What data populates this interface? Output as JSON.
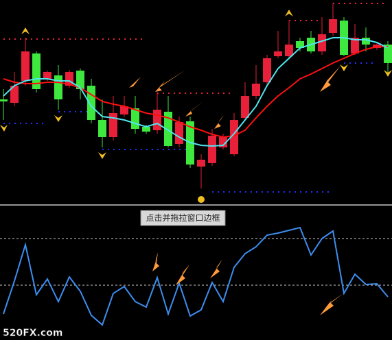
{
  "chart_data": [
    {
      "type": "candlestick",
      "ylim": [
        0,
        298
      ],
      "up_color": "#e8203a",
      "down_color": "#3ee83e",
      "open": [
        153,
        148,
        180,
        220,
        183,
        188,
        173,
        195,
        173,
        123,
        98,
        131,
        140,
        113,
        108,
        135,
        88,
        121,
        55,
        60,
        83,
        73,
        126,
        158,
        178,
        216,
        216,
        238,
        243,
        223,
        250,
        268,
        220,
        243,
        228,
        233
      ],
      "high": [
        168,
        193,
        243,
        223,
        195,
        203,
        196,
        198,
        183,
        153,
        158,
        158,
        158,
        116,
        163,
        158,
        128,
        128,
        73,
        110,
        103,
        133,
        178,
        203,
        218,
        253,
        268,
        243,
        253,
        273,
        293,
        273,
        263,
        258,
        236,
        238
      ],
      "low": [
        123,
        143,
        173,
        163,
        180,
        138,
        170,
        153,
        118,
        83,
        93,
        128,
        103,
        103,
        103,
        83,
        83,
        53,
        23,
        56,
        80,
        70,
        123,
        153,
        173,
        213,
        213,
        223,
        220,
        218,
        246,
        216,
        218,
        223,
        225,
        188
      ],
      "close": [
        150,
        173,
        223,
        168,
        193,
        153,
        193,
        168,
        123,
        98,
        133,
        143,
        110,
        106,
        138,
        85,
        120,
        58,
        65,
        100,
        98,
        123,
        158,
        176,
        213,
        223,
        233,
        228,
        223,
        248,
        270,
        218,
        243,
        233,
        233,
        206
      ],
      "series": [
        {
          "color": "#ff1010",
          "values": [
            183,
            178,
            176,
            176,
            178,
            178,
            175,
            170,
            160,
            150,
            146,
            143,
            138,
            133,
            130,
            126,
            120,
            113,
            108,
            102,
            98,
            100,
            108,
            126,
            143,
            158,
            170,
            183,
            190,
            198,
            206,
            213,
            220,
            226,
            230,
            230
          ]
        },
        {
          "color": "#4fe6f0",
          "values": [
            158,
            173,
            180,
            183,
            183,
            180,
            180,
            170,
            143,
            128,
            126,
            123,
            118,
            113,
            118,
            108,
            98,
            90,
            86,
            85,
            86,
            103,
            123,
            143,
            173,
            198,
            213,
            228,
            233,
            238,
            243,
            243,
            240,
            240,
            236,
            228
          ]
        }
      ],
      "levels": [
        {
          "value": 241,
          "from": 0,
          "to": 13,
          "color": "#e8203a"
        },
        {
          "value": 162,
          "from": 14,
          "to": 21,
          "color": "#e8203a"
        },
        {
          "value": 268,
          "from": 26,
          "to": 29,
          "color": "#e8203a"
        },
        {
          "value": 293,
          "from": 30,
          "to": 35,
          "color": "#e8203a"
        },
        {
          "value": 118,
          "from": 0,
          "to": 4,
          "color": "#2030ff"
        },
        {
          "value": 135,
          "from": 5,
          "to": 8,
          "color": "#2030ff"
        },
        {
          "value": 80,
          "from": 9,
          "to": 17,
          "color": "#2030ff"
        },
        {
          "value": 18,
          "from": 19,
          "to": 30,
          "color": "#2030ff"
        },
        {
          "value": 206,
          "from": 31,
          "to": 34,
          "color": "#2030ff"
        }
      ]
    },
    {
      "type": "line",
      "ylim": [
        0,
        194
      ],
      "color": "#3d8ef0",
      "values": [
        38,
        86,
        139,
        66,
        89,
        56,
        92,
        71,
        36,
        22,
        68,
        78,
        56,
        48,
        91,
        38,
        83,
        35,
        44,
        84,
        56,
        106,
        126,
        136,
        153,
        156,
        160,
        164,
        124,
        148,
        159,
        68,
        96,
        81,
        82,
        63
      ],
      "levels": [
        148,
        80
      ]
    }
  ],
  "button": "点击并拖拉窗口边框",
  "watermark": "520FX.com"
}
